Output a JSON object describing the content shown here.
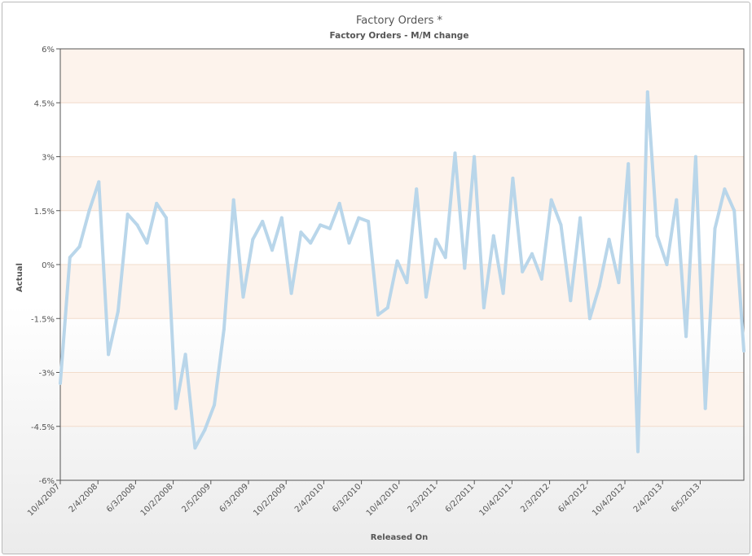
{
  "chart_data": {
    "type": "line",
    "title": "Factory Orders *",
    "subtitle": "Factory Orders - M/M change",
    "xlabel": "Released On",
    "ylabel": "Actual",
    "ylim": [
      -6,
      6
    ],
    "y_ticks": [
      "6%",
      "4.5%",
      "3%",
      "1.5%",
      "0%",
      "-1.5%",
      "-3%",
      "-4.5%",
      "-6%"
    ],
    "x_ticks": [
      "10/4/2007",
      "2/4/2008",
      "6/3/2008",
      "10/2/2008",
      "2/5/2009",
      "6/3/2009",
      "10/2/2009",
      "2/4/2010",
      "6/3/2010",
      "10/4/2010",
      "2/3/2011",
      "6/2/2011",
      "10/4/2011",
      "2/3/2012",
      "6/4/2012",
      "10/4/2012",
      "2/4/2013",
      "6/5/2013"
    ],
    "series": [
      {
        "color": "#b9d6ea",
        "values": [
          -3.3,
          0.2,
          0.5,
          1.5,
          2.3,
          -2.5,
          -1.3,
          1.4,
          1.1,
          0.6,
          1.7,
          1.3,
          -4.0,
          -2.5,
          -5.1,
          -4.6,
          -3.9,
          -1.8,
          1.8,
          -0.9,
          0.7,
          1.2,
          0.4,
          1.3,
          -0.8,
          0.9,
          0.6,
          1.1,
          1.0,
          1.7,
          0.6,
          1.3,
          1.2,
          -1.4,
          -1.2,
          0.1,
          -0.5,
          2.1,
          -0.9,
          0.7,
          0.2,
          3.1,
          -0.1,
          3.0,
          -1.2,
          0.8,
          -0.8,
          2.4,
          -0.2,
          0.3,
          -0.4,
          1.8,
          1.1,
          -1.0,
          1.3,
          -1.5,
          -0.6,
          0.7,
          -0.5,
          2.8,
          -5.2,
          4.8,
          0.8,
          0.0,
          1.8,
          -2.0,
          3.0,
          -4.0,
          1.0,
          2.1,
          1.5,
          -2.4
        ]
      }
    ],
    "grid": true,
    "bands": "alternating light orange horizontal bands",
    "colors": {
      "line": "#b9d6ea",
      "band": "#fdf3ec",
      "gridline": "#f2dccb"
    }
  }
}
